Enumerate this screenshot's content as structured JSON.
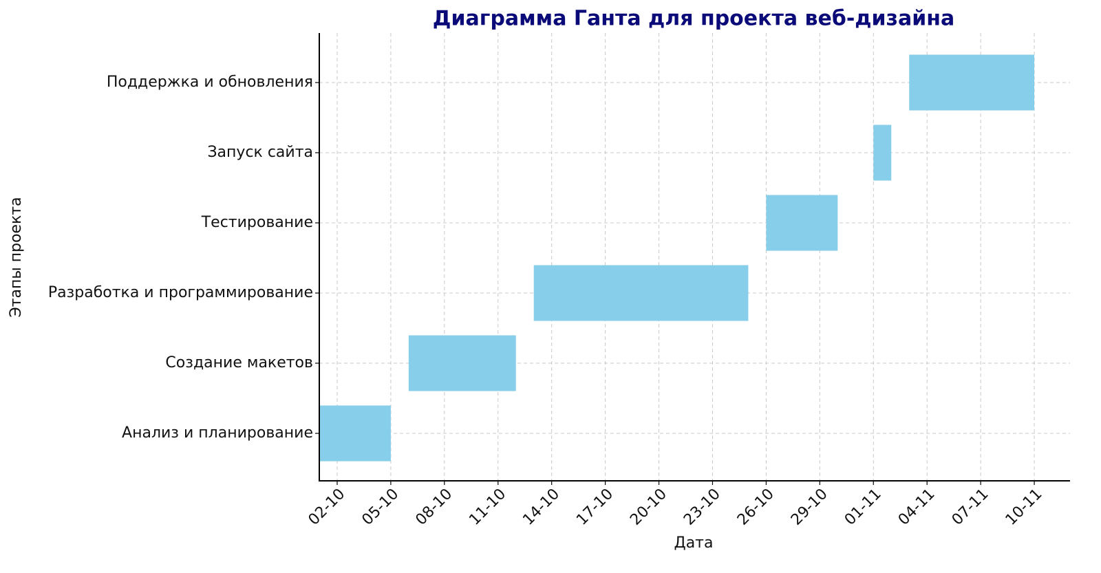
{
  "chart_data": {
    "type": "gantt",
    "title": "Диаграмма Ганта для проекта веб-дизайна",
    "x_label": "Дата",
    "y_label": "Этапы проекта",
    "categories": [
      "Анализ и планирование",
      "Создание макетов",
      "Разработка и программирование",
      "Тестирование",
      "Запуск сайта",
      "Поддержка и обновления"
    ],
    "starts": [
      "01-10",
      "06-10",
      "13-10",
      "26-10",
      "01-11",
      "03-11"
    ],
    "ends": [
      "05-10",
      "12-10",
      "25-10",
      "30-10",
      "02-11",
      "10-11"
    ],
    "color": "#87ceeb",
    "xlim": [
      "01-10",
      "12-11"
    ],
    "xticks": [
      "02-10",
      "05-10",
      "08-10",
      "11-10",
      "14-10",
      "17-10",
      "20-10",
      "23-10",
      "26-10",
      "29-10",
      "01-11",
      "04-11",
      "07-11",
      "10-11"
    ],
    "grid": true
  }
}
